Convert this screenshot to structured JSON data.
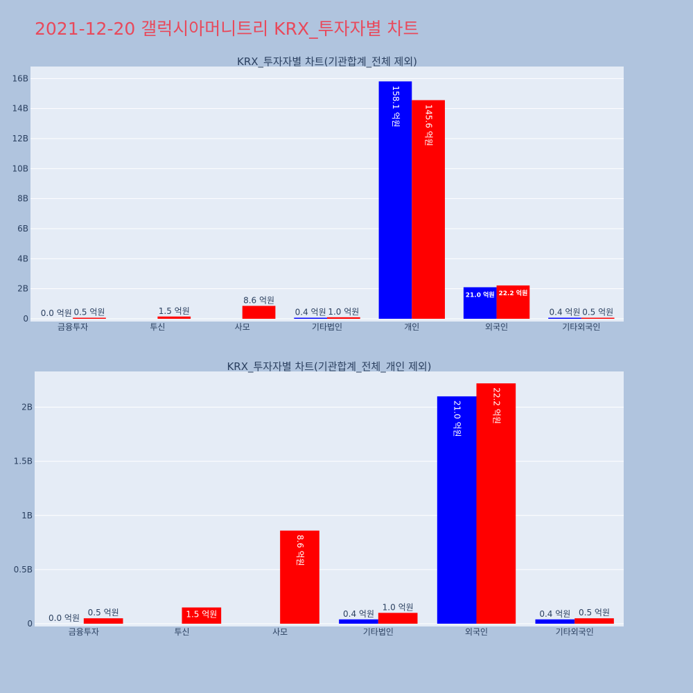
{
  "page": {
    "title": "2021-12-20 갤럭시아머니트리 KRX_투자자별 차트"
  },
  "colors": {
    "background": "#b0c4de",
    "plot_bg": "#e5ecf6",
    "buy": "#0000ff",
    "sell": "#ff0000",
    "title": "#e8495b"
  },
  "chart_data": [
    {
      "type": "bar",
      "title": "KRX_투자자별 차트(기관합계_전체 제외)",
      "categories": [
        "금융투자",
        "투신",
        "사모",
        "기타법인",
        "개인",
        "외국인",
        "기타외국인"
      ],
      "y_tick_labels": [
        "0",
        "2B",
        "4B",
        "6B",
        "8B",
        "10B",
        "12B",
        "14B",
        "16B"
      ],
      "y_tick_values": [
        0,
        2000000000,
        4000000000,
        6000000000,
        8000000000,
        10000000000,
        12000000000,
        14000000000,
        16000000000
      ],
      "ylim": [
        0,
        16800000000
      ],
      "grid": true,
      "series": [
        {
          "color": "#0000ff",
          "values": [
            0,
            0,
            0,
            40000000,
            15810000000,
            2100000000,
            40000000
          ],
          "labels": [
            "0.0 억원",
            "",
            "",
            "0.4 억원",
            "158.1 억원",
            "21.0 억원",
            "0.4 억원"
          ]
        },
        {
          "color": "#ff0000",
          "values": [
            50000000,
            150000000,
            860000000,
            100000000,
            14560000000,
            2220000000,
            50000000
          ],
          "labels": [
            "0.5 억원",
            "1.5 억원",
            "8.6 억원",
            "1.0 억원",
            "145.6 억원",
            "22.2 억원",
            "0.5 억원"
          ]
        }
      ]
    },
    {
      "type": "bar",
      "title": "KRX_투자자별 차트(기관합계_전체_개인 제외)",
      "categories": [
        "금융투자",
        "투신",
        "사모",
        "기타법인",
        "외국인",
        "기타외국인"
      ],
      "y_tick_labels": [
        "0",
        "0.5B",
        "1B",
        "1.5B",
        "2B"
      ],
      "y_tick_values": [
        0,
        500000000,
        1000000000,
        1500000000,
        2000000000
      ],
      "ylim": [
        0,
        2330000000
      ],
      "grid": true,
      "series": [
        {
          "color": "#0000ff",
          "values": [
            0,
            0,
            0,
            40000000,
            2100000000,
            40000000
          ],
          "labels": [
            "0.0 억원",
            "",
            "",
            "0.4 억원",
            "21.0 억원",
            "0.4 억원"
          ]
        },
        {
          "color": "#ff0000",
          "values": [
            50000000,
            150000000,
            860000000,
            100000000,
            2220000000,
            50000000
          ],
          "labels": [
            "0.5 억원",
            "1.5 억원",
            "8.6 억원",
            "1.0 억원",
            "22.2 억원",
            "0.5 억원"
          ]
        }
      ]
    }
  ]
}
